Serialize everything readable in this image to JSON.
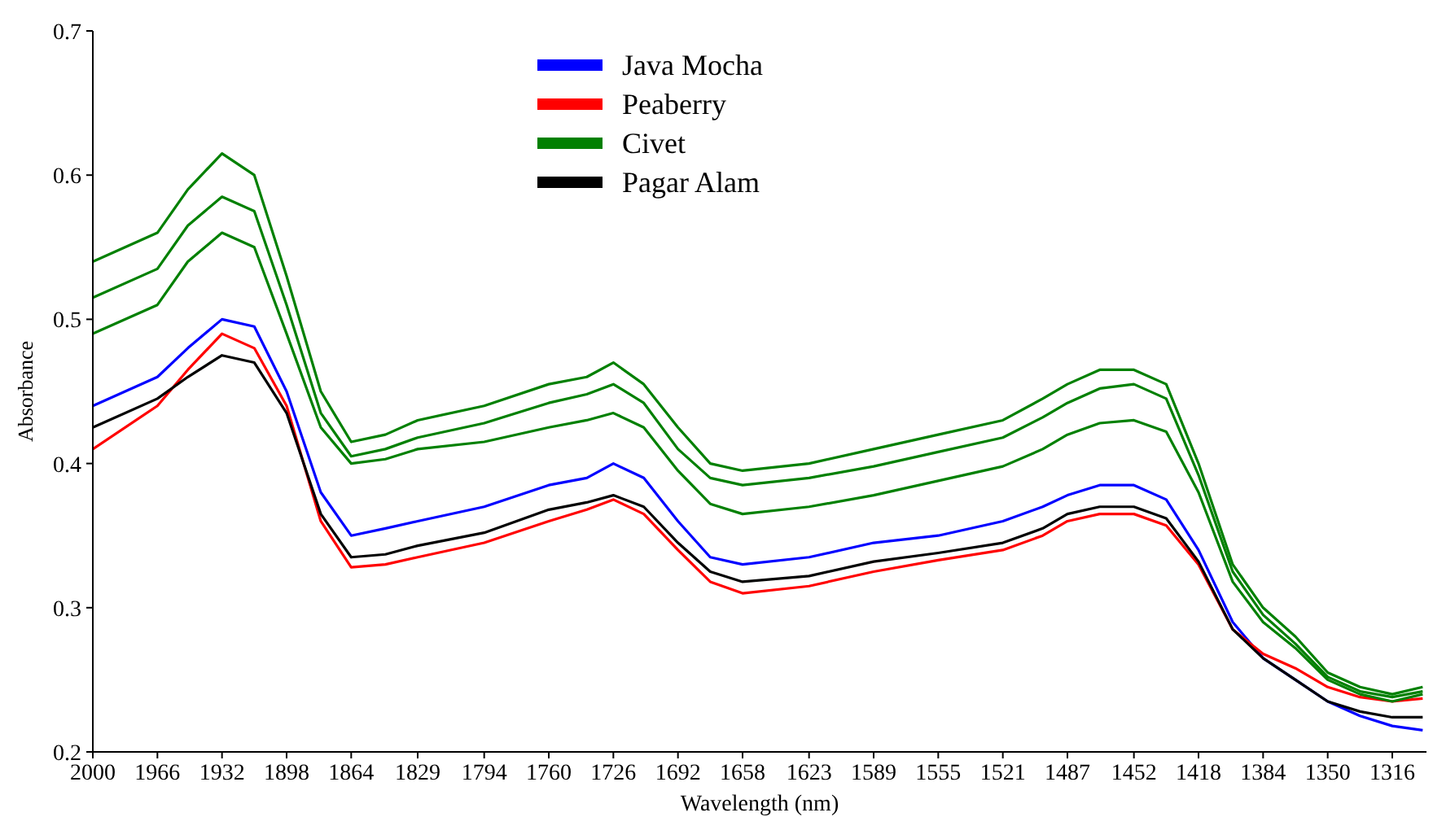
{
  "chart_data": {
    "type": "line",
    "xlabel": "Wavelength (nm)",
    "ylabel": "Absorbance",
    "xlim": [
      2000,
      1298
    ],
    "xticks": [
      2000,
      1966,
      1932,
      1898,
      1864,
      1829,
      1794,
      1760,
      1726,
      1692,
      1658,
      1623,
      1589,
      1555,
      1521,
      1487,
      1452,
      1418,
      1384,
      1350,
      1316
    ],
    "ylim": [
      0.2,
      0.7
    ],
    "yticks": [
      0.2,
      0.3,
      0.4,
      0.5,
      0.6,
      0.7
    ],
    "x": [
      2000,
      1966,
      1950,
      1932,
      1915,
      1898,
      1880,
      1864,
      1846,
      1829,
      1794,
      1760,
      1740,
      1726,
      1710,
      1692,
      1675,
      1658,
      1623,
      1589,
      1555,
      1521,
      1500,
      1487,
      1470,
      1452,
      1435,
      1418,
      1400,
      1384,
      1367,
      1350,
      1333,
      1316,
      1300
    ],
    "legend": "top",
    "grid": false,
    "line_style": "solid",
    "series": [
      {
        "name": "Java Mocha",
        "color": "#0000ff",
        "values": [
          0.44,
          0.46,
          0.48,
          0.5,
          0.495,
          0.45,
          0.38,
          0.35,
          0.355,
          0.36,
          0.37,
          0.385,
          0.39,
          0.4,
          0.39,
          0.36,
          0.335,
          0.33,
          0.335,
          0.345,
          0.35,
          0.36,
          0.37,
          0.378,
          0.385,
          0.385,
          0.375,
          0.34,
          0.29,
          0.265,
          0.25,
          0.235,
          0.225,
          0.218,
          0.215
        ]
      },
      {
        "name": "Peaberry",
        "color": "#ff0000",
        "values": [
          0.41,
          0.44,
          0.465,
          0.49,
          0.48,
          0.44,
          0.36,
          0.328,
          0.33,
          0.335,
          0.345,
          0.36,
          0.368,
          0.375,
          0.365,
          0.34,
          0.318,
          0.31,
          0.315,
          0.325,
          0.333,
          0.34,
          0.35,
          0.36,
          0.365,
          0.365,
          0.357,
          0.33,
          0.285,
          0.268,
          0.258,
          0.245,
          0.238,
          0.235,
          0.237
        ]
      },
      {
        "name": "Civet",
        "color": "#008000",
        "values": [
          0.54,
          0.56,
          0.59,
          0.615,
          0.6,
          0.53,
          0.45,
          0.415,
          0.42,
          0.43,
          0.44,
          0.455,
          0.46,
          0.47,
          0.455,
          0.425,
          0.4,
          0.395,
          0.4,
          0.41,
          0.42,
          0.43,
          0.445,
          0.455,
          0.465,
          0.465,
          0.455,
          0.4,
          0.33,
          0.3,
          0.28,
          0.255,
          0.245,
          0.24,
          0.245
        ]
      },
      {
        "color": "#008000",
        "values": [
          0.515,
          0.535,
          0.565,
          0.585,
          0.575,
          0.51,
          0.435,
          0.405,
          0.41,
          0.418,
          0.428,
          0.442,
          0.448,
          0.455,
          0.442,
          0.41,
          0.39,
          0.385,
          0.39,
          0.398,
          0.408,
          0.418,
          0.432,
          0.442,
          0.452,
          0.455,
          0.445,
          0.392,
          0.325,
          0.295,
          0.275,
          0.252,
          0.242,
          0.238,
          0.242
        ]
      },
      {
        "color": "#008000",
        "values": [
          0.49,
          0.51,
          0.54,
          0.56,
          0.55,
          0.49,
          0.425,
          0.4,
          0.403,
          0.41,
          0.415,
          0.425,
          0.43,
          0.435,
          0.425,
          0.395,
          0.372,
          0.365,
          0.37,
          0.378,
          0.388,
          0.398,
          0.41,
          0.42,
          0.428,
          0.43,
          0.422,
          0.38,
          0.318,
          0.29,
          0.272,
          0.25,
          0.24,
          0.235,
          0.24
        ]
      },
      {
        "name": "Pagar Alam",
        "color": "#000000",
        "values": [
          0.425,
          0.445,
          0.46,
          0.475,
          0.47,
          0.435,
          0.365,
          0.335,
          0.337,
          0.343,
          0.352,
          0.368,
          0.373,
          0.378,
          0.37,
          0.345,
          0.325,
          0.318,
          0.322,
          0.332,
          0.338,
          0.345,
          0.355,
          0.365,
          0.37,
          0.37,
          0.362,
          0.332,
          0.285,
          0.265,
          0.25,
          0.235,
          0.228,
          0.224,
          0.224
        ]
      }
    ]
  }
}
